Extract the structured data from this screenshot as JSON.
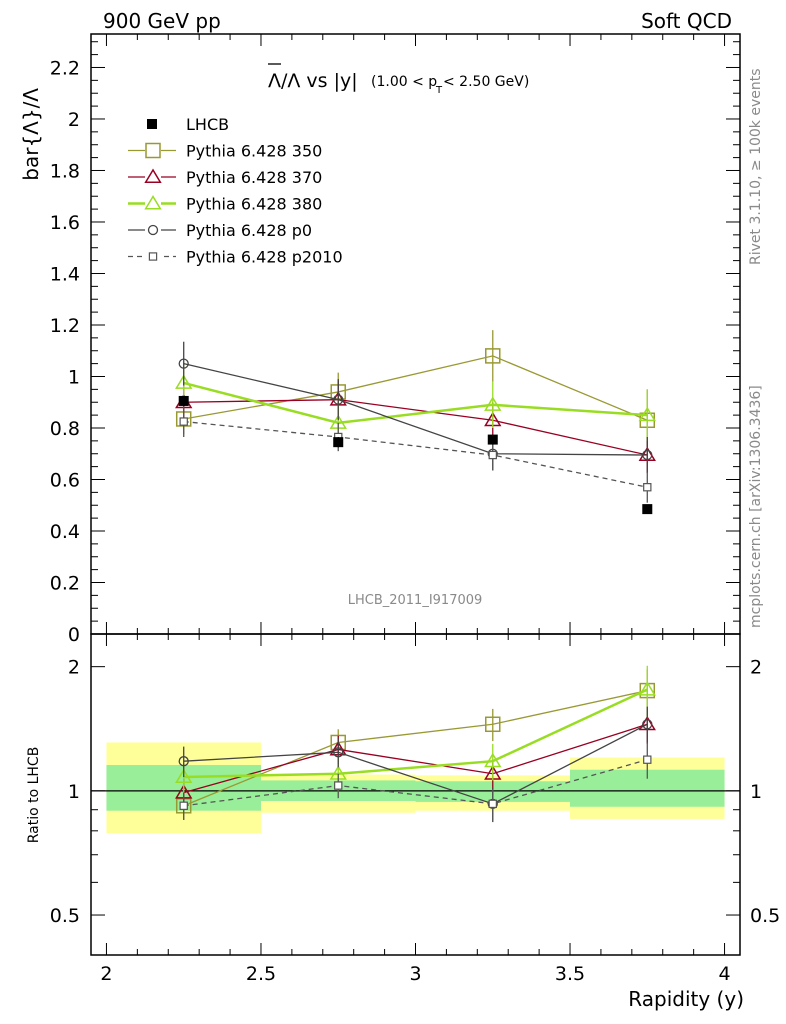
{
  "header": {
    "left": "900 GeV pp",
    "right": "Soft QCD",
    "ylabel_main": "bar{Λ}/Λ",
    "ylabel_ratio": "Ratio to LHCB",
    "xlabel": "Rapidity (y)",
    "side_rivet": "Rivet 3.1.10, ≥ 100k events",
    "side_mcplots": "mcplots.cern.ch [arXiv:1306.3436]",
    "analysis": "LHCB_2011_I917009",
    "title_main": "Λ/Λ vs |y|",
    "title_cut": "(1.00 < p",
    "title_sub": "T",
    "title_cut2": " < 2.50 GeV)"
  },
  "chart_data": {
    "type": "line",
    "x_bins": [
      [
        2.0,
        2.5
      ],
      [
        2.5,
        3.0
      ],
      [
        3.0,
        3.5
      ],
      [
        3.5,
        4.0
      ]
    ],
    "x": [
      2.25,
      2.75,
      3.25,
      3.75
    ],
    "xlim": [
      1.95,
      4.05
    ],
    "ylim_main": [
      0,
      2.33
    ],
    "ylim_ratio": [
      0.4,
      2.4
    ],
    "x_ticks": [
      "2",
      "2.5",
      "3",
      "3.5",
      "4"
    ],
    "y_ticks_main": [
      "0",
      "0.2",
      "0.4",
      "0.6",
      "0.8",
      "1",
      "1.2",
      "1.4",
      "1.6",
      "1.8",
      "2",
      "2.2"
    ],
    "y_ticks_ratio": [
      "0.5",
      "1",
      "2"
    ],
    "data": {
      "name": "LHCB",
      "values": [
        0.905,
        0.745,
        0.755,
        0.485
      ],
      "err": [
        0.02,
        0.02,
        0.015,
        0.015
      ]
    },
    "series": [
      {
        "name": "Pythia 6.428 350",
        "color": "#999933",
        "marker": "square",
        "values": [
          0.835,
          0.94,
          1.08,
          0.83
        ],
        "err": [
          0.06,
          0.075,
          0.1,
          0.12
        ]
      },
      {
        "name": "Pythia 6.428 370",
        "color": "#990022",
        "marker": "triangle",
        "values": [
          0.9,
          0.91,
          0.83,
          0.695
        ],
        "err": [
          0.07,
          0.075,
          0.07,
          0.07
        ]
      },
      {
        "name": "Pythia 6.428 380",
        "color": "#99dd22",
        "marker": "triangle",
        "values": [
          0.975,
          0.82,
          0.89,
          0.85
        ],
        "err": [
          0.08,
          0.09,
          0.09,
          0.1
        ]
      },
      {
        "name": "Pythia 6.428 p0",
        "color": "#444444",
        "marker": "circle",
        "values": [
          1.05,
          0.91,
          0.7,
          0.695
        ],
        "err": [
          0.085,
          0.08,
          0.065,
          0.07
        ]
      },
      {
        "name": "Pythia 6.428 p2010",
        "color": "#555555",
        "marker": "smallsquare",
        "dashed": true,
        "values": [
          0.825,
          0.765,
          0.695,
          0.57
        ],
        "err": [
          0.06,
          0.055,
          0.06,
          0.06
        ]
      }
    ],
    "ratio": {
      "band_yellow": [
        [
          0.79,
          1.31
        ],
        [
          0.885,
          1.095
        ],
        [
          0.895,
          1.09
        ],
        [
          0.855,
          1.205
        ]
      ],
      "band_green": [
        [
          0.895,
          1.155
        ],
        [
          0.945,
          1.06
        ],
        [
          0.94,
          1.055
        ],
        [
          0.915,
          1.125
        ]
      ],
      "series": [
        {
          "name": "Pythia 6.428 350",
          "values": [
            0.92,
            1.31,
            1.45,
            1.75
          ],
          "err": [
            0.07,
            0.1,
            0.13,
            0.22
          ]
        },
        {
          "name": "Pythia 6.428 370",
          "values": [
            0.99,
            1.26,
            1.1,
            1.45
          ],
          "err": [
            0.08,
            0.1,
            0.09,
            0.14
          ]
        },
        {
          "name": "Pythia 6.428 380",
          "values": [
            1.08,
            1.1,
            1.18,
            1.76
          ],
          "err": [
            0.09,
            0.12,
            0.12,
            0.25
          ]
        },
        {
          "name": "Pythia 6.428 p0",
          "values": [
            1.18,
            1.24,
            0.93,
            1.45
          ],
          "err": [
            0.1,
            0.1,
            0.09,
            0.15
          ]
        },
        {
          "name": "Pythia 6.428 p2010",
          "values": [
            0.92,
            1.03,
            0.93,
            1.19
          ],
          "err": [
            0.07,
            0.07,
            0.08,
            0.12
          ]
        }
      ]
    }
  }
}
